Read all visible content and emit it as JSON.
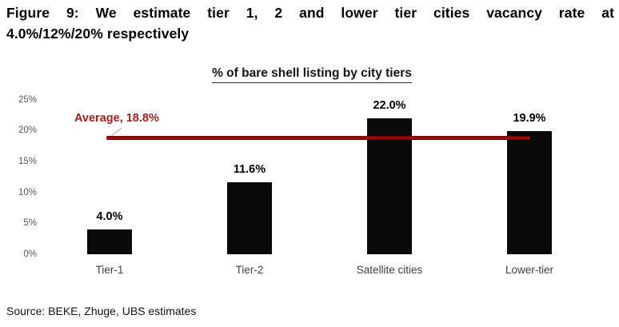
{
  "figure": {
    "title_line1": "Figure 9: We estimate tier 1, 2 and lower tier cities vacancy rate at",
    "title_line2": "4.0%/12%/20% respectively",
    "source": "Source: BEKE, Zhuge, UBS estimates"
  },
  "chart_data": {
    "type": "bar",
    "title": "% of bare shell listing by city tiers",
    "categories": [
      "Tier-1",
      "Tier-2",
      "Satellite cities",
      "Lower-tier"
    ],
    "values": [
      4.0,
      11.6,
      22.0,
      19.9
    ],
    "value_labels": [
      "4.0%",
      "11.6%",
      "22.0%",
      "19.9%"
    ],
    "average": {
      "label": "Average, 18.8%",
      "value": 18.8
    },
    "yticks": {
      "values": [
        0,
        5,
        10,
        15,
        20,
        25
      ],
      "labels": [
        "0%",
        "5%",
        "10%",
        "15%",
        "20%",
        "25%"
      ]
    },
    "ylim": [
      0,
      25
    ],
    "xlabel": "",
    "ylabel": "",
    "grid": false,
    "legend": "none",
    "bar_color": "#0a0a0a",
    "average_line_color": "#a50606",
    "average_label_color": "#9c221d",
    "tick_label_color": "#595959",
    "category_label_color": "#3f3f3f"
  }
}
